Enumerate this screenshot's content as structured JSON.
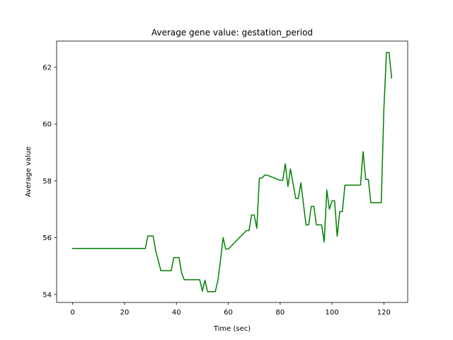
{
  "chart_data": {
    "type": "line",
    "title": "Average gene value: gestation_period",
    "xlabel": "Time (sec)",
    "ylabel": "Average value",
    "xlim": [
      -6.2,
      129.2
    ],
    "ylim": [
      53.72,
      62.92
    ],
    "grid": false,
    "xticks": [
      0,
      20,
      40,
      60,
      80,
      100,
      120
    ],
    "xtick_labels": [
      "0",
      "20",
      "40",
      "60",
      "80",
      "100",
      "120"
    ],
    "yticks": [
      54,
      56,
      58,
      60,
      62
    ],
    "ytick_labels": [
      "54",
      "56",
      "58",
      "60",
      "62"
    ],
    "series": [
      {
        "color": "#008000",
        "x": [
          0,
          28,
          29,
          31,
          32,
          34,
          38,
          39,
          41,
          42,
          43,
          49,
          50,
          51,
          52,
          55,
          56,
          57,
          58,
          59,
          60,
          67,
          68,
          69,
          70,
          71,
          72,
          73,
          74,
          75,
          80,
          81,
          82,
          83,
          84,
          86,
          87,
          88,
          90,
          91,
          92,
          93,
          94,
          96,
          97,
          98,
          99,
          100,
          101,
          102,
          103,
          104,
          105,
          111,
          112,
          113,
          114,
          115,
          119,
          120,
          121,
          122,
          123
        ],
        "y": [
          55.62,
          55.62,
          56.06,
          56.06,
          55.55,
          54.84,
          54.84,
          55.3,
          55.3,
          54.76,
          54.52,
          54.52,
          54.12,
          54.5,
          54.1,
          54.1,
          54.5,
          55.2,
          56.0,
          55.6,
          55.6,
          56.25,
          56.25,
          56.8,
          56.8,
          56.33,
          58.1,
          58.1,
          58.2,
          58.2,
          58.02,
          58.02,
          58.6,
          57.8,
          58.42,
          57.38,
          57.38,
          57.93,
          56.45,
          56.45,
          57.1,
          57.1,
          56.45,
          56.45,
          55.85,
          57.68,
          57.0,
          57.3,
          57.3,
          56.05,
          56.92,
          56.92,
          57.85,
          57.85,
          59.03,
          58.05,
          58.05,
          57.23,
          57.23,
          60.5,
          62.52,
          62.52,
          61.62
        ]
      }
    ]
  }
}
